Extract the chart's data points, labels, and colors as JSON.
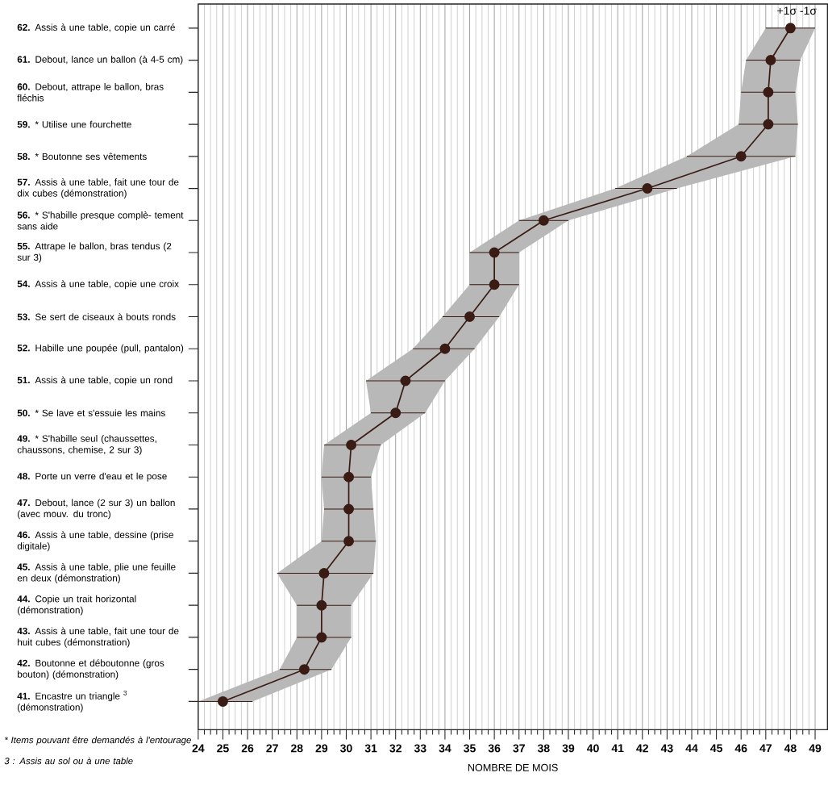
{
  "chart_data": {
    "type": "line",
    "orientation": "horizontal",
    "xlabel": "NOMBRE DE MOIS",
    "categories": [
      "**62.** Assis à une table, copie un carré",
      "**61.** Debout, lance un ballon (à 4-5 cm)",
      "**60.** Debout, attrape le ballon, bras fléchis",
      "**59.** * Utilise une fourchette",
      "**58.** * Boutonne ses vêtements",
      "**57.** Assis à une table, fait une tour de dix cubes (démonstration)",
      "**56.** * S'habille presque complè- tement sans aide",
      "**55.** Attrape le ballon, bras tendus (2 sur 3)",
      "**54.** Assis à une table, copie une croix",
      "**53.** Se sert de ciseaux à bouts ronds",
      "**52.** Habille une poupée (pull, pantalon)",
      "**51.** Assis à une table, copie un rond",
      "**50.** * Se lave et s'essuie les mains",
      "**49.** * S'habille seul (chaussettes, chaussons, chemise, 2 sur 3)",
      "**48.** Porte un verre d'eau et le pose",
      "**47.** Debout, lance (2 sur 3) un ballon (avec mouv. du tronc)",
      "**46.** Assis à une table, dessine (prise digitale)",
      "**45.** Assis à une table, plie une feuille en deux (démonstration)",
      "**44.** Copie un trait horizontal (démonstration)",
      "**43.** Assis à une table, fait une tour de huit cubes (démonstration)",
      "**42.** Boutonne et déboutonne (gros bouton) (démonstration)",
      "**41.** Encastre un triangle $^{3}$ (démonstration)"
    ],
    "series": [
      {
        "color": "#3a1c14",
        "values": [
          48,
          47.2,
          47.1,
          47.1,
          46,
          42.2,
          38,
          36,
          36,
          35,
          34,
          32.4,
          32,
          30.2,
          30.1,
          30.1,
          30.1,
          29.1,
          29,
          29,
          28.3,
          25
        ],
        "errors": [
          [
            47,
            49
          ],
          [
            46.2,
            48.4
          ],
          [
            46,
            48.2
          ],
          [
            45.9,
            48.3
          ],
          [
            43.8,
            48.2
          ],
          [
            40.9,
            43.4
          ],
          [
            37,
            39
          ],
          [
            35,
            37
          ],
          [
            35,
            37
          ],
          [
            33.9,
            36.2
          ],
          [
            32.7,
            35.2
          ],
          [
            30.8,
            34
          ],
          [
            31,
            33.2
          ],
          [
            29.1,
            31.4
          ],
          [
            29,
            31
          ],
          [
            29.1,
            31.1
          ],
          [
            29,
            31.2
          ],
          [
            27.2,
            31.1
          ],
          [
            28,
            30.2
          ],
          [
            28,
            30.2
          ],
          [
            27.3,
            29.4
          ],
          [
            24,
            26.2
          ]
        ],
        "lower": [
          47,
          46.2,
          46,
          45.9,
          43.8,
          40.9,
          37,
          35,
          35,
          33.9,
          32.7,
          30.8,
          31,
          29.1,
          29,
          29.1,
          29,
          27.2,
          28,
          28,
          27.3,
          24
        ],
        "upper": [
          49,
          48.4,
          48.2,
          48.3,
          48.2,
          43.4,
          39,
          37,
          37,
          36.2,
          35.2,
          34,
          33.2,
          31.4,
          31,
          31.1,
          31.2,
          31.1,
          30.2,
          30.2,
          29.4,
          26.2
        ]
      }
    ],
    "xlim": [
      24,
      49.5
    ],
    "xticks": [
      24,
      25,
      26,
      27,
      28,
      29,
      30,
      31,
      32,
      33,
      34,
      35,
      36,
      37,
      38,
      39,
      40,
      41,
      42,
      43,
      44,
      45,
      46,
      47,
      48,
      49
    ],
    "grid": "x",
    "marker": "circle",
    "line_style": "solid",
    "annotations": [
      "+1σ -1σ",
      "* Items pouvant être demandés à l'entourage",
      "3 : Assis au sol ou à une table"
    ]
  }
}
